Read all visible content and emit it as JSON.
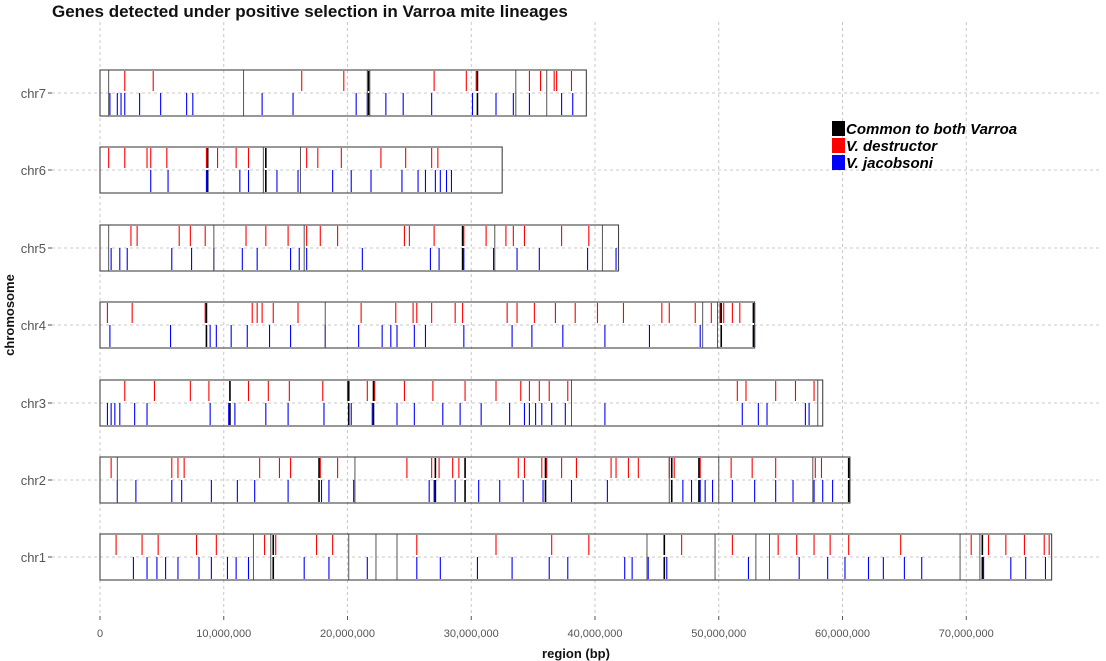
{
  "chart_data": {
    "type": "segment",
    "title": "Genes detected under positive selection in Varroa mite lineages",
    "xlabel": "region (bp)",
    "ylabel": "chromosome",
    "xlim": [
      0,
      80000000
    ],
    "x_ticks": [
      0,
      10000000,
      20000000,
      30000000,
      40000000,
      50000000,
      60000000,
      70000000
    ],
    "x_tick_labels": [
      "0",
      "10,000,000",
      "20,000,000",
      "30,000,000",
      "40,000,000",
      "50,000,000",
      "60,000,000",
      "70,000,000"
    ],
    "grid": true,
    "legend_position": "right",
    "legend": [
      {
        "key": "common",
        "label": "Common to both Varroa",
        "color": "#000000"
      },
      {
        "key": "destructor",
        "label": "V. destructor",
        "color": "#ff0000"
      },
      {
        "key": "jacobsoni",
        "label": "V. jacobsoni",
        "color": "#0000ff"
      }
    ],
    "chromosomes": [
      {
        "name": "chr7",
        "length": 39300000,
        "scaffold_breaks": [
          700000,
          11600000,
          21600000,
          21800000,
          33600000,
          36100000
        ],
        "destructor": [
          2000000,
          4300000,
          16300000,
          19700000,
          27000000,
          29600000,
          30400000,
          34700000,
          35600000,
          36700000,
          36900000,
          38100000
        ],
        "jacobsoni": [
          800000,
          1400000,
          1700000,
          2000000,
          3200000,
          4900000,
          7000000,
          7500000,
          13100000,
          15600000,
          20700000,
          21600000,
          23100000,
          24500000,
          26800000,
          30100000,
          32000000,
          33400000,
          34700000,
          37300000,
          38200000
        ],
        "common": [
          21700000,
          30500000
        ]
      },
      {
        "name": "chr6",
        "length": 32500000,
        "scaffold_breaks": [
          13200000,
          16200000
        ],
        "destructor": [
          700000,
          2000000,
          3800000,
          4100000,
          5400000,
          8600000,
          9500000,
          11000000,
          12000000,
          16700000,
          17600000,
          19500000,
          22700000,
          24700000,
          26800000,
          27300000
        ],
        "jacobsoni": [
          4100000,
          5500000,
          8600000,
          11300000,
          12000000,
          14300000,
          16000000,
          18800000,
          20300000,
          21900000,
          24400000,
          25700000,
          26300000,
          27100000,
          27500000,
          28000000,
          28400000
        ],
        "common": [
          8700000,
          13400000
        ]
      },
      {
        "name": "chr5",
        "length": 41900000,
        "scaffold_breaks": [
          700000,
          9200000,
          16500000,
          31900000,
          40600000
        ],
        "destructor": [
          2500000,
          3000000,
          6400000,
          7300000,
          8500000,
          11800000,
          13400000,
          15200000,
          16700000,
          17800000,
          19200000,
          24600000,
          25000000,
          27000000,
          29400000,
          31200000,
          32800000,
          33400000,
          34300000,
          37300000,
          39500000
        ],
        "jacobsoni": [
          900000,
          1600000,
          2200000,
          5800000,
          7400000,
          9200000,
          11500000,
          12700000,
          15400000,
          16100000,
          16700000,
          21200000,
          26700000,
          27400000,
          29400000,
          31800000,
          33700000,
          35500000,
          39400000,
          41700000
        ],
        "common": [
          29300000
        ]
      },
      {
        "name": "chr4",
        "length": 52900000,
        "scaffold_breaks": [
          18200000,
          48700000,
          49900000
        ],
        "destructor": [
          600000,
          2600000,
          8500000,
          12300000,
          12700000,
          13100000,
          14000000,
          16000000,
          21100000,
          23900000,
          25300000,
          25600000,
          26800000,
          28700000,
          29300000,
          32900000,
          33700000,
          35100000,
          36800000,
          38400000,
          40200000,
          42300000,
          45400000,
          46000000,
          48100000,
          49400000,
          50100000,
          50400000,
          51100000,
          51700000,
          52900000
        ],
        "jacobsoni": [
          800000,
          5700000,
          8900000,
          9400000,
          10600000,
          11900000,
          13700000,
          15400000,
          18200000,
          20900000,
          22800000,
          23500000,
          24000000,
          25400000,
          26300000,
          29400000,
          33300000,
          34900000,
          37400000,
          40800000,
          44400000,
          48500000,
          52900000
        ],
        "common": [
          8600000,
          50200000,
          52800000
        ]
      },
      {
        "name": "chr3",
        "length": 58400000,
        "scaffold_breaks": [
          38100000,
          58000000
        ],
        "destructor": [
          2000000,
          4400000,
          7300000,
          8800000,
          10500000,
          12000000,
          13600000,
          15300000,
          18000000,
          20000000,
          21600000,
          22200000,
          24600000,
          26900000,
          29500000,
          32000000,
          34000000,
          34700000,
          35500000,
          36300000,
          37800000,
          51500000,
          52200000,
          54600000,
          56200000,
          57700000
        ],
        "jacobsoni": [
          600000,
          900000,
          1200000,
          1600000,
          2800000,
          3800000,
          8900000,
          10400000,
          10900000,
          13400000,
          15200000,
          18100000,
          20300000,
          22000000,
          24000000,
          25400000,
          27700000,
          29100000,
          30800000,
          33100000,
          34300000,
          34700000,
          35200000,
          35700000,
          36500000,
          37600000,
          40800000,
          51900000,
          53200000,
          53900000,
          57000000,
          57300000
        ],
        "common": [
          10500000,
          20100000,
          22100000
        ]
      },
      {
        "name": "chr2",
        "length": 60600000,
        "scaffold_breaks": [
          1400000,
          20600000,
          46000000,
          50000000,
          57600000
        ],
        "destructor": [
          900000,
          5800000,
          6300000,
          6800000,
          12900000,
          14500000,
          15400000,
          17800000,
          19200000,
          24800000,
          26800000,
          27400000,
          28500000,
          29000000,
          29500000,
          33800000,
          34300000,
          35700000,
          36100000,
          37300000,
          38500000,
          41300000,
          41700000,
          42700000,
          43500000,
          46000000,
          46400000,
          48500000,
          51000000,
          52700000,
          54600000,
          57800000,
          58300000,
          60500000
        ],
        "jacobsoni": [
          1400000,
          2900000,
          5800000,
          6600000,
          9000000,
          11100000,
          12500000,
          15200000,
          17900000,
          18500000,
          20500000,
          26600000,
          27000000,
          28700000,
          30600000,
          32300000,
          34200000,
          35800000,
          38100000,
          41000000,
          46200000,
          47100000,
          47800000,
          48500000,
          48900000,
          49500000,
          51100000,
          52900000,
          54600000,
          56000000,
          57700000,
          58400000,
          59200000
        ],
        "common": [
          17700000,
          27100000,
          29500000,
          36000000,
          46200000,
          48400000,
          60500000
        ]
      },
      {
        "name": "chr1",
        "length": 76900000,
        "scaffold_breaks": [
          12400000,
          13800000,
          20100000,
          22300000,
          24000000,
          44200000,
          49700000,
          53000000,
          54100000,
          69500000,
          71100000
        ],
        "destructor": [
          1300000,
          3400000,
          4700000,
          7800000,
          9400000,
          13300000,
          14000000,
          14200000,
          17500000,
          18800000,
          25600000,
          32000000,
          36500000,
          39500000,
          47000000,
          51100000,
          54800000,
          56300000,
          57700000,
          59000000,
          60500000,
          64700000,
          70400000,
          71800000,
          73200000,
          74700000,
          76300000,
          76700000
        ],
        "jacobsoni": [
          2700000,
          3800000,
          4600000,
          5300000,
          6300000,
          8000000,
          9000000,
          10300000,
          11000000,
          12000000,
          14000000,
          16500000,
          18500000,
          21600000,
          25600000,
          27500000,
          30500000,
          33300000,
          36300000,
          37800000,
          42400000,
          43000000,
          44300000,
          45800000,
          52400000,
          56500000,
          58800000,
          60200000,
          62100000,
          63300000,
          65000000,
          66400000,
          71400000,
          73600000,
          74800000,
          76400000
        ],
        "common": [
          14000000,
          45600000,
          71300000
        ]
      }
    ]
  }
}
